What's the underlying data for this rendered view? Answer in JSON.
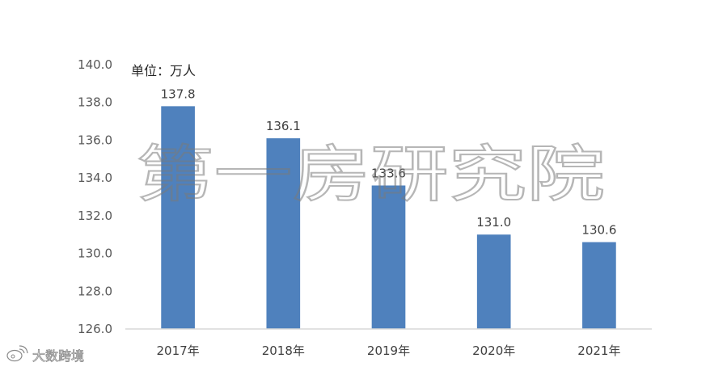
{
  "unit_label": "单位：万人",
  "watermark": "第一房研究院",
  "logo": {
    "icon": "weibo-icon",
    "text": "大数跨境"
  },
  "colors": {
    "bar": "#4f81bd",
    "axis": "#d9d9d9",
    "text": "#595959"
  },
  "chart_data": {
    "type": "bar",
    "title": "",
    "xlabel": "",
    "ylabel": "",
    "categories": [
      "2017年",
      "2018年",
      "2019年",
      "2020年",
      "2021年"
    ],
    "values": [
      137.8,
      136.1,
      133.6,
      131.0,
      130.6
    ],
    "data_labels": [
      "137.8",
      "136.1",
      "133.6",
      "131.0",
      "130.6"
    ],
    "ylim": [
      126.0,
      140.0
    ],
    "yticks": [
      "126.0",
      "128.0",
      "130.0",
      "132.0",
      "134.0",
      "136.0",
      "138.0",
      "140.0"
    ],
    "grid": false,
    "legend": "none"
  }
}
